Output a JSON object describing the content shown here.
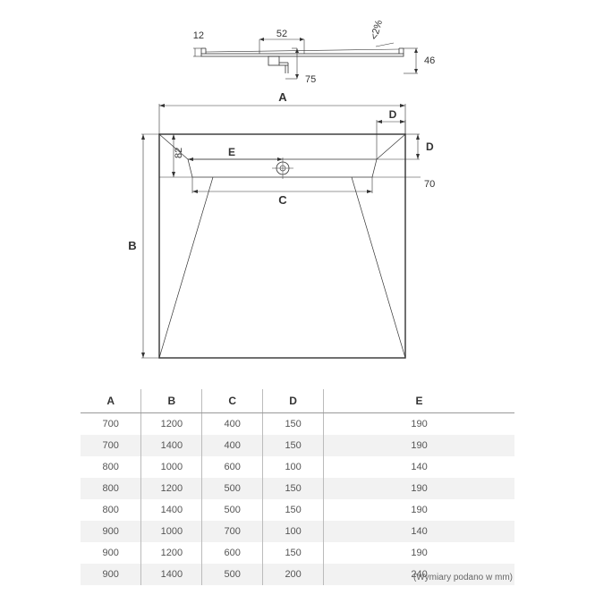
{
  "diagram": {
    "type": "technical-drawing",
    "profile_view": {
      "dim_12": "12",
      "dim_52": "52",
      "dim_75": "75",
      "dim_46": "46",
      "slope": "<2%"
    },
    "plan_view": {
      "dim_A": "A",
      "dim_B": "B",
      "dim_C": "C",
      "dim_D_top": "D",
      "dim_D_side": "D",
      "dim_E": "E",
      "dim_82": "82",
      "dim_70": "70"
    },
    "stroke_color": "#333333",
    "thin_stroke": 0.8,
    "thick_stroke": 1.4,
    "font_size_dim": 11,
    "font_size_letter": 12,
    "background": "#ffffff"
  },
  "table": {
    "columns": [
      "A",
      "B",
      "C",
      "D",
      "E"
    ],
    "rows": [
      [
        "700",
        "1200",
        "400",
        "150",
        "190"
      ],
      [
        "700",
        "1400",
        "400",
        "150",
        "190"
      ],
      [
        "800",
        "1000",
        "600",
        "100",
        "140"
      ],
      [
        "800",
        "1200",
        "500",
        "150",
        "190"
      ],
      [
        "800",
        "1400",
        "500",
        "150",
        "190"
      ],
      [
        "900",
        "1000",
        "700",
        "100",
        "140"
      ],
      [
        "900",
        "1200",
        "600",
        "150",
        "190"
      ],
      [
        "900",
        "1400",
        "500",
        "200",
        "240"
      ]
    ]
  },
  "footnote": "(Wymiary podano w mm)"
}
